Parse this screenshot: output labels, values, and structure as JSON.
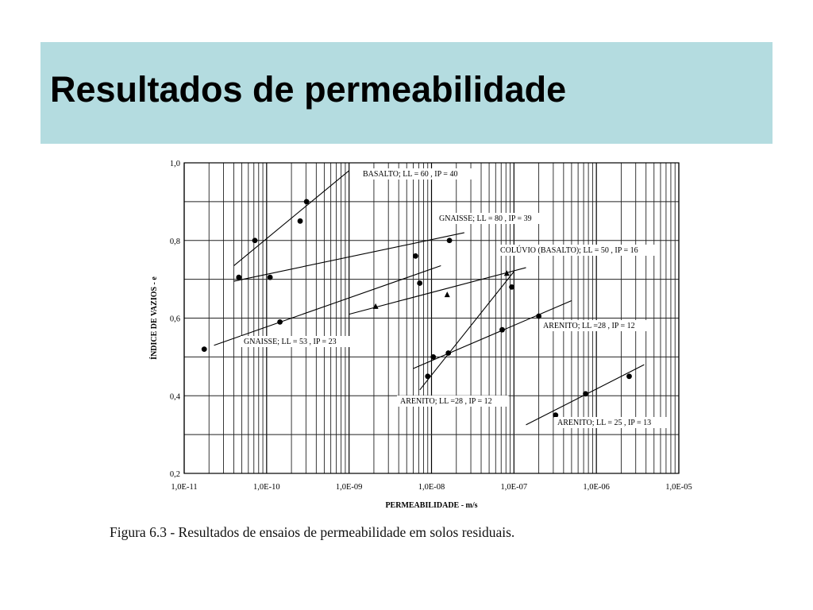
{
  "slide": {
    "title": "Resultados de permeabilidade",
    "caption": "Figura 6.3 - Resultados de ensaios de permeabilidade em solos residuais."
  },
  "chart_data": {
    "type": "scatter",
    "xlabel": "PERMEABILIDADE - m/s",
    "ylabel": "ÍNDICE DE VAZIOS - e",
    "xscale": "log",
    "xlim": [
      1e-11,
      1e-05
    ],
    "ylim": [
      0.2,
      1.0
    ],
    "grid": true,
    "xticks": [
      {
        "value": 1e-11,
        "label": "1,0E-11"
      },
      {
        "value": 1e-10,
        "label": "1,0E-10"
      },
      {
        "value": 1e-09,
        "label": "1,0E-09"
      },
      {
        "value": 1e-08,
        "label": "1,0E-08"
      },
      {
        "value": 1e-07,
        "label": "1,0E-07"
      },
      {
        "value": 1e-06,
        "label": "1,0E-06"
      },
      {
        "value": 1e-05,
        "label": "1,0E-05"
      }
    ],
    "yticks": [
      {
        "value": 0.2,
        "label": "0,2"
      },
      {
        "value": 0.4,
        "label": "0,4"
      },
      {
        "value": 0.6,
        "label": "0,6"
      },
      {
        "value": 0.8,
        "label": "0,8"
      },
      {
        "value": 1.0,
        "label": "1,0"
      }
    ],
    "series": [
      {
        "name": "BASALTO; LL = 60 , IP = 40",
        "marker": "circle",
        "points": [
          [
            7.2e-11,
            0.8
          ],
          [
            2.55e-10,
            0.85
          ],
          [
            3.05e-10,
            0.9
          ]
        ],
        "trend": [
          [
            4e-11,
            0.735
          ],
          [
            1e-09,
            0.98
          ]
        ]
      },
      {
        "name": "GNAISSE; LL = 80 , IP = 39",
        "marker": "circle",
        "points": [
          [
            4.6e-11,
            0.705
          ],
          [
            1.1e-10,
            0.705
          ],
          [
            6.4e-09,
            0.76
          ],
          [
            1.65e-08,
            0.8
          ]
        ],
        "trend": [
          [
            4e-11,
            0.695
          ],
          [
            2.5e-08,
            0.82
          ]
        ]
      },
      {
        "name": "GNAISSE; LL = 53 , IP = 23",
        "marker": "circle",
        "points": [
          [
            1.75e-11,
            0.52
          ],
          [
            1.45e-10,
            0.59
          ],
          [
            7.2e-09,
            0.69
          ]
        ],
        "trend": [
          [
            2.3e-11,
            0.53
          ],
          [
            1.3e-08,
            0.735
          ]
        ]
      },
      {
        "name": "COLÚVIO (BASALTO); LL = 50 , IP = 16",
        "marker": "triangle",
        "points": [
          [
            2.1e-09,
            0.63
          ],
          [
            1.55e-08,
            0.66
          ],
          [
            8.2e-08,
            0.715
          ]
        ],
        "trend": [
          [
            1e-09,
            0.61
          ],
          [
            1.4e-07,
            0.73
          ]
        ]
      },
      {
        "name": "ARENITO; LL =28 , IP = 12",
        "marker": "circle",
        "points": [
          [
            9e-09,
            0.45
          ],
          [
            1.6e-08,
            0.51
          ],
          [
            9.4e-08,
            0.68
          ]
        ],
        "trend": [
          [
            7.2e-09,
            0.415
          ],
          [
            1e-07,
            0.72
          ]
        ]
      },
      {
        "name": "ARENITO; LL =28 , IP = 12",
        "marker": "circle",
        "points": [
          [
            1.05e-08,
            0.5
          ],
          [
            7.2e-08,
            0.57
          ],
          [
            2e-07,
            0.605
          ]
        ],
        "trend": [
          [
            6e-09,
            0.47
          ],
          [
            5e-07,
            0.645
          ]
        ]
      },
      {
        "name": "ARENITO; LL = 25 , IP = 13",
        "marker": "circle",
        "points": [
          [
            3.2e-07,
            0.35
          ],
          [
            7.4e-07,
            0.405
          ],
          [
            2.5e-06,
            0.45
          ]
        ],
        "trend": [
          [
            1.4e-07,
            0.325
          ],
          [
            3.8e-06,
            0.48
          ]
        ]
      }
    ],
    "annotations": [
      "BASALTO; LL = 60 , IP = 40",
      "GNAISSE; LL = 80 , IP = 39",
      "COLÚVIO (BASALTO); LL = 50 , IP = 16",
      "ARENITO; LL =28 , IP = 12",
      "GNAISSE; LL = 53 , IP = 23",
      "ARENITO; LL =28 , IP = 12",
      "ARENITO; LL = 25 , IP = 13"
    ]
  }
}
